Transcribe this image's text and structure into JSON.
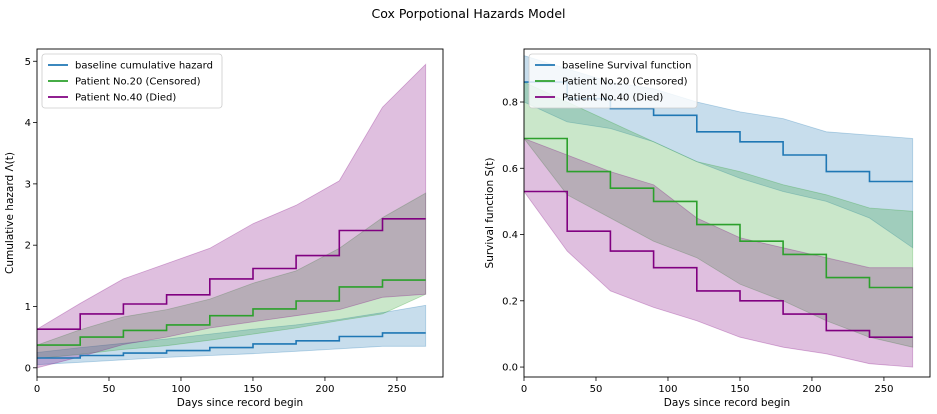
{
  "figure": {
    "title": "Cox Porpotional Hazards Model"
  },
  "chart_data": [
    {
      "type": "line",
      "step": true,
      "xlabel": "Days since record begin",
      "ylabel": "Cumulative hazard Λ(t)",
      "xlim": [
        0,
        282
      ],
      "ylim": [
        -0.15,
        5.2
      ],
      "xticks": [
        0,
        50,
        100,
        150,
        200,
        250
      ],
      "yticks": [
        0,
        1,
        2,
        3,
        4,
        5
      ],
      "grid": false,
      "legend_position": "top-left",
      "x": [
        0,
        30,
        60,
        90,
        120,
        150,
        180,
        210,
        240,
        270
      ],
      "series": [
        {
          "name": "baseline cumulative hazard",
          "color": "#1f77b4",
          "values": [
            0.16,
            0.2,
            0.24,
            0.28,
            0.33,
            0.39,
            0.44,
            0.51,
            0.57,
            0.57
          ],
          "ci_lower": [
            0.05,
            0.09,
            0.13,
            0.17,
            0.2,
            0.23,
            0.27,
            0.31,
            0.35,
            0.35
          ],
          "ci_upper": [
            0.25,
            0.33,
            0.4,
            0.47,
            0.55,
            0.63,
            0.7,
            0.79,
            0.9,
            1.02
          ]
        },
        {
          "name": "Patient No.20 (Censored)",
          "color": "#2ca02c",
          "values": [
            0.37,
            0.5,
            0.61,
            0.7,
            0.85,
            0.96,
            1.09,
            1.32,
            1.43,
            1.43
          ],
          "ci_lower": [
            0.15,
            0.22,
            0.3,
            0.36,
            0.45,
            0.55,
            0.65,
            0.77,
            0.88,
            1.2
          ],
          "ci_upper": [
            0.37,
            0.62,
            0.83,
            0.95,
            1.12,
            1.38,
            1.58,
            1.95,
            2.45,
            2.85
          ]
        },
        {
          "name": "Patient No.40 (Died)",
          "color": "#800080",
          "values": [
            0.63,
            0.88,
            1.04,
            1.19,
            1.45,
            1.62,
            1.83,
            2.24,
            2.43,
            2.43
          ],
          "ci_lower": [
            0.0,
            0.18,
            0.38,
            0.5,
            0.65,
            0.75,
            0.85,
            0.95,
            1.15,
            1.2
          ],
          "ci_upper": [
            0.63,
            1.05,
            1.45,
            1.7,
            1.95,
            2.35,
            2.65,
            3.05,
            4.25,
            4.95
          ]
        }
      ]
    },
    {
      "type": "line",
      "step": true,
      "xlabel": "Days since record begin",
      "ylabel": "Survival function S(t)",
      "xlim": [
        0,
        282
      ],
      "ylim": [
        -0.03,
        0.96
      ],
      "xticks": [
        0,
        50,
        100,
        150,
        200,
        250
      ],
      "yticks": [
        0.0,
        0.2,
        0.4,
        0.6,
        0.8
      ],
      "grid": false,
      "legend_position": "top-left",
      "x": [
        0,
        30,
        60,
        90,
        120,
        150,
        180,
        210,
        240,
        270
      ],
      "series": [
        {
          "name": "baseline Survival function",
          "color": "#1f77b4",
          "values": [
            0.86,
            0.81,
            0.78,
            0.76,
            0.71,
            0.68,
            0.64,
            0.59,
            0.56,
            0.56
          ],
          "ci_lower": [
            0.8,
            0.74,
            0.72,
            0.68,
            0.62,
            0.57,
            0.53,
            0.5,
            0.45,
            0.36
          ],
          "ci_upper": [
            0.94,
            0.9,
            0.86,
            0.84,
            0.8,
            0.77,
            0.75,
            0.71,
            0.7,
            0.69
          ]
        },
        {
          "name": "Patient No.20 (Censored)",
          "color": "#2ca02c",
          "values": [
            0.69,
            0.59,
            0.54,
            0.5,
            0.43,
            0.38,
            0.34,
            0.27,
            0.24,
            0.24
          ],
          "ci_lower": [
            0.69,
            0.52,
            0.45,
            0.38,
            0.33,
            0.25,
            0.2,
            0.14,
            0.09,
            0.06
          ],
          "ci_upper": [
            0.86,
            0.8,
            0.74,
            0.68,
            0.62,
            0.59,
            0.55,
            0.52,
            0.48,
            0.47
          ]
        },
        {
          "name": "Patient No.40 (Died)",
          "color": "#800080",
          "values": [
            0.53,
            0.41,
            0.35,
            0.3,
            0.23,
            0.2,
            0.16,
            0.11,
            0.09,
            0.09
          ],
          "ci_lower": [
            0.53,
            0.35,
            0.23,
            0.18,
            0.14,
            0.09,
            0.06,
            0.04,
            0.01,
            0.0
          ],
          "ci_upper": [
            0.69,
            0.64,
            0.59,
            0.55,
            0.45,
            0.39,
            0.36,
            0.33,
            0.3,
            0.3
          ]
        }
      ]
    }
  ]
}
